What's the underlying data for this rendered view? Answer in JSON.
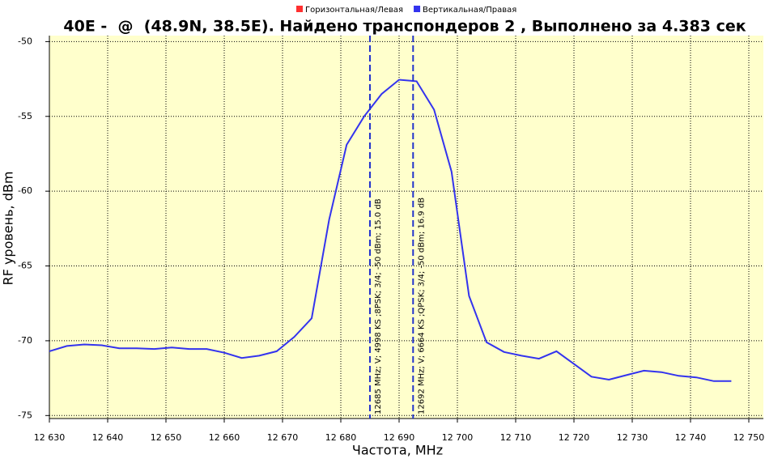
{
  "chart_data": {
    "type": "line",
    "title": "40E -  @  (48.9N, 38.5E). Найдено транспондеров 2 , Выполнено за 4.383 сек",
    "x_label": "Частота, MHz",
    "y_label": "RF уровень, dBm",
    "x": [
      12630,
      12633,
      12636,
      12639,
      12642,
      12645,
      12648,
      12651,
      12654,
      12657,
      12660,
      12663,
      12666,
      12669,
      12672,
      12675,
      12678,
      12681,
      12684,
      12687,
      12690,
      12693,
      12696,
      12699,
      12702,
      12705,
      12708,
      12711,
      12714,
      12717,
      12720,
      12723,
      12726,
      12729,
      12732,
      12735,
      12738,
      12741,
      12744,
      12747
    ],
    "series": [
      {
        "name": "Горизонтальная/Левая",
        "color": "#ff3030",
        "values": [
          null,
          null,
          null,
          null,
          null,
          null,
          null,
          null,
          null,
          null,
          null,
          null,
          null,
          null,
          null,
          null,
          null,
          null,
          null,
          null,
          null,
          null,
          null,
          null,
          null,
          null,
          null,
          null,
          null,
          null,
          null,
          null,
          null,
          null,
          null,
          null,
          null,
          null,
          null,
          null
        ]
      },
      {
        "name": "Вертикальная/Правая",
        "color": "#3333ee",
        "values": [
          -70.7,
          -70.35,
          -70.25,
          -70.3,
          -70.5,
          -70.5,
          -70.55,
          -70.45,
          -70.55,
          -70.55,
          -70.8,
          -71.15,
          -71.0,
          -70.7,
          -69.75,
          -68.5,
          -61.9,
          -56.9,
          -55.0,
          -53.5,
          -52.55,
          -52.65,
          -54.55,
          -58.7,
          -67.0,
          -70.1,
          -70.75,
          -71.0,
          -71.2,
          -70.7,
          -71.55,
          -72.4,
          -72.6,
          -72.3,
          -72.0,
          -72.1,
          -72.35,
          -72.45,
          -72.7,
          -72.7
        ]
      }
    ],
    "markers": [
      {
        "x": 12685,
        "label": "12685 MHz; V; 4998 KS ;8PSK; 3/4; -50 dBm; 15.0 dB"
      },
      {
        "x": 12692.4,
        "label": "12692 MHz; V; 6664 KS ;QPSK; 3/4; -50 dBm; 16.9 dB"
      }
    ],
    "xlim": [
      12630,
      12752.5
    ],
    "xticks": [
      {
        "value": 12630,
        "label": "12 630"
      },
      {
        "value": 12640,
        "label": "12 640"
      },
      {
        "value": 12650,
        "label": "12 650"
      },
      {
        "value": 12660,
        "label": "12 660"
      },
      {
        "value": 12670,
        "label": "12 670"
      },
      {
        "value": 12680,
        "label": "12 680"
      },
      {
        "value": 12690,
        "label": "12 690"
      },
      {
        "value": 12700,
        "label": "12 700"
      },
      {
        "value": 12710,
        "label": "12 710"
      },
      {
        "value": 12720,
        "label": "12 720"
      },
      {
        "value": 12730,
        "label": "12 730"
      },
      {
        "value": 12740,
        "label": "12 740"
      },
      {
        "value": 12750,
        "label": "12 750"
      }
    ],
    "ylim": [
      -75.2,
      -49.6
    ],
    "yticks": [
      -50,
      -55,
      -60,
      -65,
      -70,
      -75
    ],
    "grid": true
  }
}
